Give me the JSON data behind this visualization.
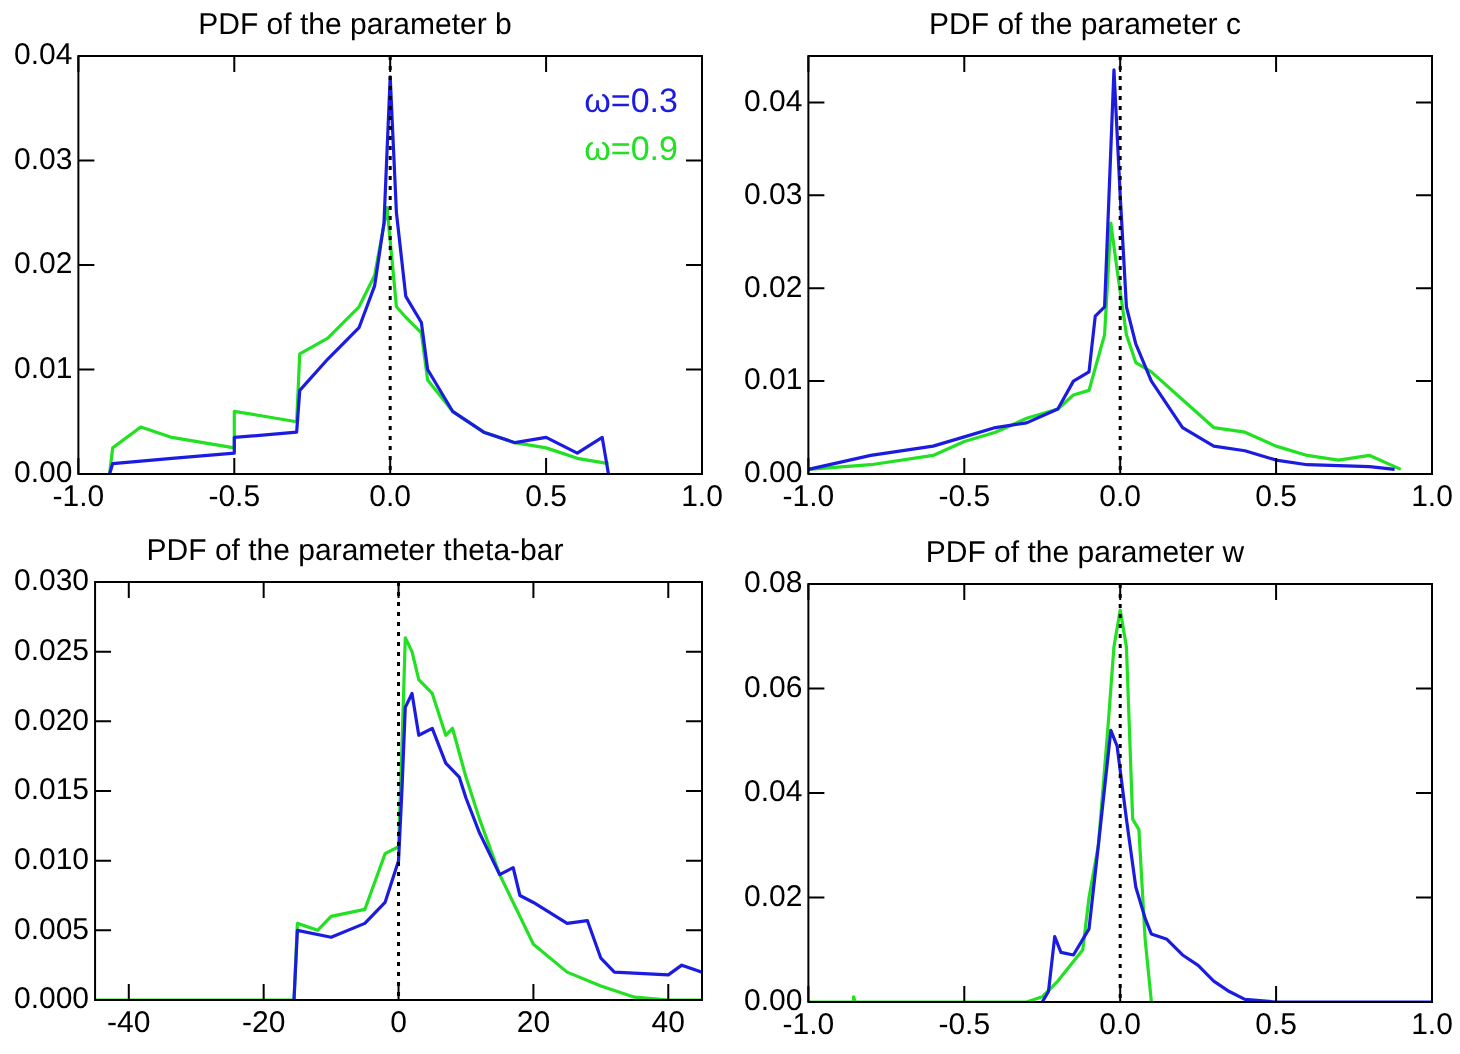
{
  "chart_data": [
    {
      "type": "line",
      "title": "PDF of the parameter b",
      "legend": "top right",
      "grid": false,
      "marker": "none",
      "xlim": [
        -1,
        1
      ],
      "xticks": [
        {
          "value": -1,
          "label": "-1.0"
        },
        {
          "value": -0.5,
          "label": "-0.5"
        },
        {
          "value": 0,
          "label": "0.0"
        },
        {
          "value": 0.5,
          "label": "0.5"
        },
        {
          "value": 1,
          "label": "1.0"
        }
      ],
      "ylim": [
        0,
        0.04
      ],
      "yticks": [
        {
          "value": 0,
          "label": "0.00"
        },
        0.01,
        0.02,
        0.03,
        0.04
      ],
      "ref_lines": [
        {
          "axis": "x",
          "value": 0,
          "color": "#000000",
          "line_style": "dotted"
        }
      ],
      "series": [
        {
          "name": "ω=0.3",
          "color": "#1c1ce0",
          "x": [
            -0.9,
            -0.89,
            -0.7,
            -0.5,
            -0.5,
            -0.3,
            -0.29,
            -0.2,
            -0.1,
            -0.05,
            -0.02,
            0,
            0.02,
            0.05,
            0.1,
            0.12,
            0.2,
            0.3,
            0.4,
            0.5,
            0.6,
            0.68,
            0.7
          ],
          "values": [
            0,
            0.001,
            0.0015,
            0.002,
            0.0035,
            0.004,
            0.008,
            0.011,
            0.014,
            0.018,
            0.024,
            0.038,
            0.025,
            0.017,
            0.0145,
            0.01,
            0.006,
            0.004,
            0.003,
            0.0035,
            0.002,
            0.0035,
            0
          ]
        },
        {
          "name": "ω=0.9",
          "color": "#22e022",
          "x": [
            -0.9,
            -0.89,
            -0.8,
            -0.7,
            -0.6,
            -0.5,
            -0.5,
            -0.4,
            -0.3,
            -0.29,
            -0.2,
            -0.1,
            -0.05,
            -0.01,
            0.02,
            0.05,
            0.1,
            0.12,
            0.2,
            0.3,
            0.4,
            0.5,
            0.6,
            0.7
          ],
          "values": [
            0,
            0.0025,
            0.0045,
            0.0035,
            0.003,
            0.0025,
            0.006,
            0.0055,
            0.005,
            0.0115,
            0.013,
            0.016,
            0.019,
            0.0255,
            0.016,
            0.015,
            0.0135,
            0.009,
            0.006,
            0.004,
            0.003,
            0.0025,
            0.0015,
            0.001
          ]
        }
      ]
    },
    {
      "type": "line",
      "title": "PDF of the parameter c",
      "grid": false,
      "marker": "none",
      "xlim": [
        -1,
        1
      ],
      "xticks": [
        {
          "value": -1,
          "label": "-1.0"
        },
        {
          "value": -0.5,
          "label": "-0.5"
        },
        {
          "value": 0,
          "label": "0.0"
        },
        {
          "value": 0.5,
          "label": "0.5"
        },
        {
          "value": 1,
          "label": "1.0"
        }
      ],
      "ylim": [
        0,
        0.045
      ],
      "yticks": [
        {
          "value": 0,
          "label": "0.00"
        },
        0.01,
        0.02,
        0.03,
        0.04
      ],
      "ref_lines": [
        {
          "axis": "x",
          "value": 0,
          "color": "#000000",
          "line_style": "dotted"
        }
      ],
      "series": [
        {
          "color": "#1c1ce0",
          "x": [
            -1,
            -0.8,
            -0.6,
            -0.5,
            -0.4,
            -0.3,
            -0.2,
            -0.15,
            -0.1,
            -0.08,
            -0.05,
            -0.03,
            -0.02,
            0,
            0.02,
            0.05,
            0.1,
            0.2,
            0.3,
            0.4,
            0.5,
            0.6,
            0.8,
            0.88
          ],
          "values": [
            0.0005,
            0.002,
            0.003,
            0.004,
            0.005,
            0.0055,
            0.007,
            0.01,
            0.011,
            0.017,
            0.018,
            0.035,
            0.0435,
            0.03,
            0.018,
            0.014,
            0.01,
            0.005,
            0.003,
            0.0025,
            0.0015,
            0.001,
            0.0008,
            0.0005
          ]
        },
        {
          "color": "#22e022",
          "x": [
            -1,
            -0.8,
            -0.6,
            -0.5,
            -0.4,
            -0.3,
            -0.2,
            -0.15,
            -0.1,
            -0.05,
            -0.03,
            -0.01,
            0.02,
            0.05,
            0.1,
            0.2,
            0.3,
            0.4,
            0.5,
            0.6,
            0.7,
            0.8,
            0.9
          ],
          "values": [
            0.0005,
            0.001,
            0.002,
            0.0035,
            0.0045,
            0.006,
            0.007,
            0.0085,
            0.009,
            0.015,
            0.027,
            0.022,
            0.015,
            0.012,
            0.011,
            0.008,
            0.005,
            0.0045,
            0.003,
            0.002,
            0.0015,
            0.002,
            0.0005
          ]
        }
      ]
    },
    {
      "type": "line",
      "title": "PDF of the parameter theta-bar",
      "grid": false,
      "marker": "none",
      "xlim": [
        -45,
        45
      ],
      "xticks": [
        -40,
        -20,
        0,
        20,
        40
      ],
      "ylim": [
        0,
        0.03
      ],
      "yticks": [
        {
          "value": 0,
          "label": "0.000"
        },
        {
          "value": 0.005,
          "label": "0.005"
        },
        {
          "value": 0.01,
          "label": "0.010"
        },
        {
          "value": 0.015,
          "label": "0.015"
        },
        {
          "value": 0.02,
          "label": "0.020"
        },
        {
          "value": 0.025,
          "label": "0.025"
        },
        {
          "value": 0.03,
          "label": "0.030"
        }
      ],
      "ref_lines": [
        {
          "axis": "x",
          "value": 0,
          "color": "#000000",
          "line_style": "dotted"
        }
      ],
      "series": [
        {
          "color": "#1c1ce0",
          "x": [
            -15.5,
            -15,
            -10,
            -5,
            -2,
            0,
            0.5,
            1,
            2,
            3,
            5,
            7,
            9,
            10,
            12,
            15,
            17,
            18,
            20,
            25,
            28,
            30,
            32,
            40,
            42,
            45
          ],
          "values": [
            0,
            0.005,
            0.0045,
            0.0055,
            0.007,
            0.01,
            0.015,
            0.021,
            0.022,
            0.019,
            0.0195,
            0.017,
            0.016,
            0.0145,
            0.012,
            0.009,
            0.0095,
            0.0075,
            0.007,
            0.0055,
            0.0057,
            0.003,
            0.002,
            0.0018,
            0.0025,
            0.002
          ]
        },
        {
          "color": "#22e022",
          "x": [
            -45,
            -15.5,
            -15,
            -12,
            -10,
            -5,
            -2,
            0,
            0.5,
            1,
            2,
            3,
            5,
            7,
            8,
            10,
            12,
            15,
            18,
            20,
            25,
            30,
            35,
            40,
            45
          ],
          "values": [
            0,
            0,
            0.0055,
            0.005,
            0.006,
            0.0065,
            0.0105,
            0.011,
            0.018,
            0.026,
            0.025,
            0.023,
            0.022,
            0.019,
            0.0195,
            0.016,
            0.013,
            0.009,
            0.006,
            0.004,
            0.002,
            0.001,
            0.0002,
            0,
            0
          ]
        }
      ]
    },
    {
      "type": "line",
      "title": "PDF of the parameter w",
      "grid": false,
      "marker": "none",
      "xlim": [
        -1,
        1
      ],
      "xticks": [
        {
          "value": -1,
          "label": "-1.0"
        },
        {
          "value": -0.5,
          "label": "-0.5"
        },
        {
          "value": 0,
          "label": "0.0"
        },
        {
          "value": 0.5,
          "label": "0.5"
        },
        {
          "value": 1,
          "label": "1.0"
        }
      ],
      "ylim": [
        0,
        0.08
      ],
      "yticks": [
        {
          "value": 0,
          "label": "0.00"
        },
        {
          "value": 0.02,
          "label": "0.02"
        },
        {
          "value": 0.04,
          "label": "0.04"
        },
        {
          "value": 0.06,
          "label": "0.06"
        },
        {
          "value": 0.08,
          "label": "0.08"
        }
      ],
      "ref_lines": [
        {
          "axis": "x",
          "value": 0,
          "color": "#000000",
          "line_style": "dotted"
        }
      ],
      "series": [
        {
          "color": "#1c1ce0",
          "x": [
            -0.25,
            -0.23,
            -0.21,
            -0.19,
            -0.15,
            -0.1,
            -0.07,
            -0.03,
            -0.01,
            0.02,
            0.05,
            0.08,
            0.1,
            0.15,
            0.2,
            0.25,
            0.3,
            0.35,
            0.4,
            0.5,
            1
          ],
          "values": [
            0,
            0.002,
            0.0125,
            0.0095,
            0.009,
            0.014,
            0.03,
            0.052,
            0.049,
            0.035,
            0.022,
            0.016,
            0.013,
            0.012,
            0.009,
            0.007,
            0.004,
            0.002,
            0.0005,
            0,
            0
          ]
        },
        {
          "color": "#22e022",
          "x": [
            -1,
            -0.86,
            -0.855,
            -0.85,
            -0.3,
            -0.25,
            -0.2,
            -0.12,
            -0.1,
            -0.07,
            -0.04,
            -0.02,
            0,
            0.02,
            0.04,
            0.06,
            0.08,
            0.1
          ],
          "values": [
            0,
            0,
            0.001,
            0,
            0,
            0.001,
            0.004,
            0.01,
            0.02,
            0.03,
            0.052,
            0.068,
            0.075,
            0.068,
            0.035,
            0.033,
            0.012,
            0
          ]
        }
      ]
    }
  ]
}
